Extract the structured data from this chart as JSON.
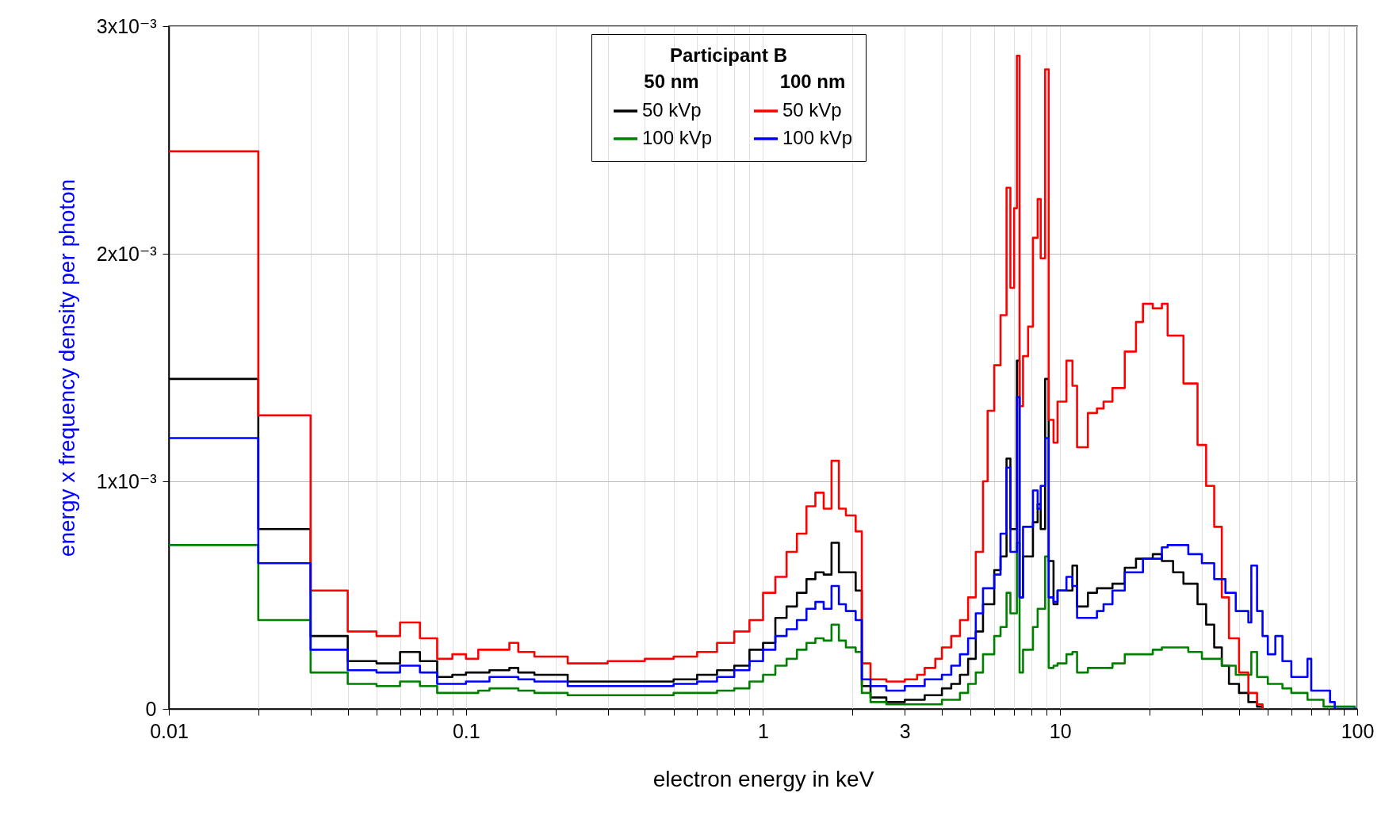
{
  "chart_data": {
    "type": "step",
    "xlabel": "electron energy in keV",
    "ylabel": "energy x frequency density per photon",
    "legend_title": "Participant B",
    "annotations": [
      "50 nm",
      "100 nm"
    ],
    "log": "x",
    "grid": true,
    "legend": "top",
    "xlim": [
      0.01,
      100
    ],
    "ylim": [
      0,
      0.003
    ],
    "xticks": [
      0.01,
      {
        "value": 0.02,
        "label": null
      },
      {
        "value": 0.03,
        "label": null
      },
      {
        "value": 0.04,
        "label": null
      },
      {
        "value": 0.05,
        "label": null
      },
      {
        "value": 0.06,
        "label": null
      },
      {
        "value": 0.07,
        "label": null
      },
      {
        "value": 0.08,
        "label": null
      },
      {
        "value": 0.09,
        "label": null
      },
      0.1,
      {
        "value": 0.2,
        "label": null
      },
      {
        "value": 0.3,
        "label": null
      },
      {
        "value": 0.4,
        "label": null
      },
      {
        "value": 0.5,
        "label": null
      },
      {
        "value": 0.6,
        "label": null
      },
      {
        "value": 0.7,
        "label": null
      },
      {
        "value": 0.8,
        "label": null
      },
      {
        "value": 0.9,
        "label": null
      },
      1,
      {
        "value": 2,
        "label": null
      },
      3,
      {
        "value": 4,
        "label": null
      },
      {
        "value": 5,
        "label": null
      },
      {
        "value": 6,
        "label": null
      },
      {
        "value": 7,
        "label": null
      },
      {
        "value": 8,
        "label": null
      },
      {
        "value": 9,
        "label": null
      },
      10,
      {
        "value": 20,
        "label": null
      },
      {
        "value": 30,
        "label": null
      },
      {
        "value": 40,
        "label": null
      },
      {
        "value": 50,
        "label": null
      },
      {
        "value": 60,
        "label": null
      },
      {
        "value": 70,
        "label": null
      },
      {
        "value": 80,
        "label": null
      },
      {
        "value": 90,
        "label": null
      },
      100
    ],
    "yticks": [
      0,
      {
        "value": 0.001,
        "label": "1x10⁻³"
      },
      {
        "value": 0.002,
        "label": "2x10⁻³"
      },
      {
        "value": 0.003,
        "label": "3x10⁻³"
      }
    ],
    "x": [
      0.01,
      0.02,
      0.03,
      0.04,
      0.05,
      0.06,
      0.07,
      0.08,
      0.09,
      0.1,
      0.11,
      0.12,
      0.14,
      0.15,
      0.17,
      0.22,
      0.3,
      0.4,
      0.5,
      0.6,
      0.7,
      0.8,
      0.9,
      1.0,
      1.1,
      1.2,
      1.3,
      1.4,
      1.5,
      1.6,
      1.7,
      1.8,
      1.9,
      2.05,
      2.15,
      2.3,
      2.6,
      3.0,
      3.3,
      3.5,
      3.8,
      4.0,
      4.3,
      4.6,
      4.9,
      5.2,
      5.5,
      5.7,
      6.0,
      6.3,
      6.6,
      6.8,
      7.0,
      7.15,
      7.3,
      7.5,
      7.8,
      8.1,
      8.4,
      8.6,
      8.9,
      9.15,
      9.5,
      9.8,
      10.5,
      11.0,
      11.4,
      12.4,
      13.3,
      14,
      15,
      16.5,
      18,
      19,
      20.5,
      22,
      23,
      24,
      26,
      27,
      29,
      30,
      31,
      33,
      35,
      36,
      37,
      39,
      40,
      41,
      43,
      44,
      46,
      48,
      50,
      53,
      56,
      60,
      68,
      70,
      77,
      81,
      84,
      98,
      100
    ],
    "series": [
      {
        "name": "50 kVp",
        "color": "#000000",
        "values": [
          0.00145,
          0.00079,
          0.00032,
          0.00021,
          0.0002,
          0.00025,
          0.00021,
          0.00014,
          0.00015,
          0.00016,
          0.00016,
          0.00017,
          0.00018,
          0.00016,
          0.00015,
          0.00012,
          0.00012,
          0.00012,
          0.00013,
          0.00015,
          0.00017,
          0.00019,
          0.00026,
          0.00029,
          0.0004,
          0.00045,
          0.00051,
          0.00057,
          0.0006,
          0.00059,
          0.00073,
          0.0006,
          0.0006,
          0.00052,
          0.0001,
          5e-05,
          3e-05,
          4e-05,
          4e-05,
          6e-05,
          6e-05,
          9e-05,
          0.00011,
          0.00015,
          0.00022,
          0.00034,
          0.00046,
          0.00046,
          0.00061,
          0.00067,
          0.0011,
          0.00079,
          0.00079,
          0.00153,
          0.00049,
          0.00067,
          0.00067,
          0.00082,
          0.0009,
          0.00079,
          0.00145,
          0.00065,
          0.00046,
          0.00052,
          0.00052,
          0.00063,
          0.00045,
          0.00051,
          0.00053,
          0.00053,
          0.00055,
          0.00062,
          0.00066,
          0.00066,
          0.00068,
          0.00065,
          0.00065,
          0.0006,
          0.00055,
          0.00055,
          0.00046,
          0.00046,
          0.00037,
          0.00027,
          0.00019,
          0.00019,
          0.00011,
          0.00011,
          7e-05,
          7e-05,
          3e-05,
          3e-05,
          1e-05,
          0,
          null,
          null,
          null,
          null,
          null,
          null,
          null,
          null,
          null,
          null,
          null
        ]
      },
      {
        "name": "100 kVp",
        "color": "#008000",
        "values": [
          0.00072,
          0.00039,
          0.00016,
          0.00011,
          0.0001,
          0.00012,
          0.0001,
          7e-05,
          7e-05,
          7e-05,
          8e-05,
          9e-05,
          9e-05,
          8e-05,
          7e-05,
          6e-05,
          6e-05,
          6e-05,
          7e-05,
          7e-05,
          8e-05,
          9e-05,
          0.00012,
          0.00015,
          0.00019,
          0.00022,
          0.00026,
          0.00029,
          0.00031,
          0.0003,
          0.00037,
          0.0003,
          0.00027,
          0.00025,
          7e-05,
          3e-05,
          2e-05,
          2e-05,
          2e-05,
          2e-05,
          2e-05,
          4e-05,
          4e-05,
          7e-05,
          0.00011,
          0.00016,
          0.00024,
          0.00024,
          0.00032,
          0.00036,
          0.00051,
          0.00042,
          0.00042,
          0.00073,
          0.00016,
          0.00026,
          0.00026,
          0.00036,
          0.00044,
          0.00044,
          0.00067,
          0.00018,
          0.00019,
          0.0002,
          0.00024,
          0.00025,
          0.00016,
          0.00018,
          0.00018,
          0.00018,
          0.0002,
          0.00024,
          0.00024,
          0.00024,
          0.00026,
          0.00027,
          0.00027,
          0.00027,
          0.00027,
          0.00025,
          0.00025,
          0.00022,
          0.00022,
          0.00022,
          0.00019,
          0.00019,
          0.00019,
          0.00015,
          0.00015,
          0.00015,
          0.00015,
          0.00025,
          0.00014,
          0.00014,
          0.00011,
          0.00011,
          9e-05,
          7e-05,
          4e-05,
          4e-05,
          1e-05,
          1e-05,
          1e-05,
          0,
          0
        ]
      },
      {
        "name": "50 kVp",
        "color": "#ff0000",
        "values": [
          0.00245,
          0.00129,
          0.00052,
          0.00034,
          0.00032,
          0.00038,
          0.00031,
          0.00022,
          0.00024,
          0.00022,
          0.00026,
          0.00026,
          0.00029,
          0.00025,
          0.00023,
          0.0002,
          0.00021,
          0.00022,
          0.00023,
          0.00025,
          0.00029,
          0.00034,
          0.00039,
          0.00051,
          0.00058,
          0.00069,
          0.00077,
          0.00089,
          0.00095,
          0.00088,
          0.00109,
          0.00088,
          0.00085,
          0.00078,
          0.0002,
          0.00013,
          0.00012,
          0.00013,
          0.00015,
          0.00018,
          0.00022,
          0.00027,
          0.00032,
          0.00039,
          0.00049,
          0.00069,
          0.001,
          0.00131,
          0.00151,
          0.00173,
          0.00229,
          0.00185,
          0.0022,
          0.00287,
          0.00133,
          0.00155,
          0.00168,
          0.00207,
          0.00224,
          0.00198,
          0.00281,
          0.00127,
          0.00117,
          0.00135,
          0.00153,
          0.00142,
          0.00115,
          0.0013,
          0.00132,
          0.00135,
          0.00141,
          0.00157,
          0.0017,
          0.00178,
          0.00176,
          0.00178,
          0.00164,
          0.00164,
          0.00143,
          0.00143,
          0.00116,
          0.00116,
          0.00098,
          0.0008,
          0.00049,
          0.00049,
          0.00031,
          0.00031,
          0.00016,
          0.00016,
          7e-05,
          7e-05,
          2e-05,
          0,
          null,
          null,
          null,
          null,
          null,
          null,
          null,
          null,
          null,
          null,
          null
        ]
      },
      {
        "name": "100 kVp",
        "color": "#0000ff",
        "values": [
          0.00119,
          0.00064,
          0.00026,
          0.00017,
          0.00016,
          0.00019,
          0.00016,
          0.00011,
          0.00011,
          0.00012,
          0.00012,
          0.00014,
          0.00014,
          0.00013,
          0.00012,
          0.0001,
          0.0001,
          0.0001,
          0.00011,
          0.00012,
          0.00014,
          0.00017,
          0.00021,
          0.00026,
          0.00032,
          0.00035,
          0.00039,
          0.00044,
          0.00047,
          0.00044,
          0.00054,
          0.00046,
          0.00043,
          0.00039,
          0.00013,
          0.0001,
          8e-05,
          0.0001,
          0.0001,
          0.00013,
          0.00013,
          0.00015,
          0.00019,
          0.00024,
          0.00031,
          0.00042,
          0.00053,
          0.00053,
          0.00059,
          0.00077,
          0.00106,
          0.00069,
          0.00069,
          0.00137,
          0.00049,
          0.0008,
          0.0008,
          0.00096,
          0.00088,
          0.00098,
          0.00119,
          0.00049,
          0.00047,
          0.00052,
          0.00058,
          0.00054,
          0.0004,
          0.0004,
          0.00043,
          0.00046,
          0.00052,
          0.0006,
          0.0006,
          0.00066,
          0.00066,
          0.00071,
          0.00072,
          0.00072,
          0.00072,
          0.00068,
          0.00068,
          0.00064,
          0.00064,
          0.00057,
          0.00057,
          0.00051,
          0.00051,
          0.00043,
          0.00043,
          0.00043,
          0.00038,
          0.00063,
          0.00043,
          0.00032,
          0.00024,
          0.00032,
          0.00021,
          0.00014,
          0.00022,
          8e-05,
          8e-05,
          3e-05,
          0,
          0,
          0
        ]
      }
    ]
  }
}
